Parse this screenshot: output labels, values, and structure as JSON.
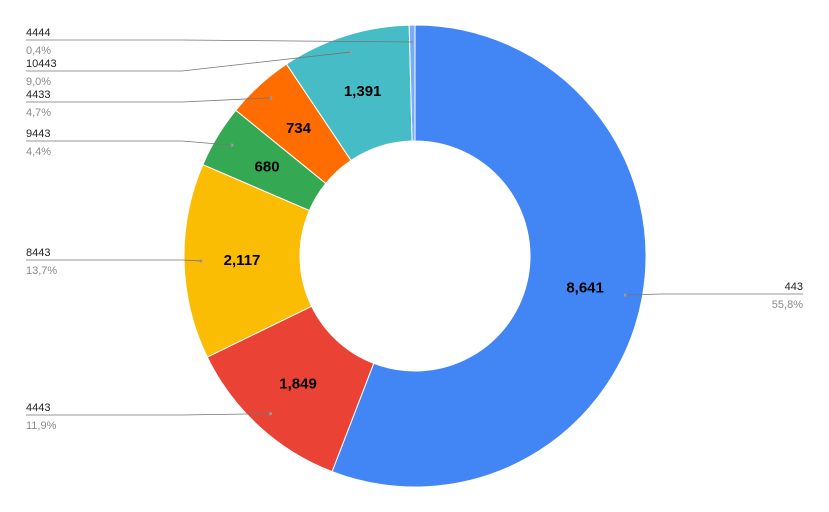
{
  "chart_data": {
    "type": "pie",
    "donut": true,
    "title": "",
    "slices": [
      {
        "label": "443",
        "value": 8641,
        "value_label": "8,641",
        "percent_label": "55,8%",
        "color": "#4285f4"
      },
      {
        "label": "4443",
        "value": 1849,
        "value_label": "1,849",
        "percent_label": "11,9%",
        "color": "#ea4335"
      },
      {
        "label": "8443",
        "value": 2117,
        "value_label": "2,117",
        "percent_label": "13,7%",
        "color": "#fbbc04"
      },
      {
        "label": "9443",
        "value": 680,
        "value_label": "680",
        "percent_label": "4,4%",
        "color": "#34a853"
      },
      {
        "label": "4433",
        "value": 734,
        "value_label": "734",
        "percent_label": "4,7%",
        "color": "#ff6d01"
      },
      {
        "label": "10443",
        "value": 1391,
        "value_label": "1,391",
        "percent_label": "9,0%",
        "color": "#46bdc6"
      },
      {
        "label": "4444",
        "value": 62,
        "value_label": "",
        "percent_label": "0,4%",
        "color": "#7baaf7"
      }
    ]
  }
}
